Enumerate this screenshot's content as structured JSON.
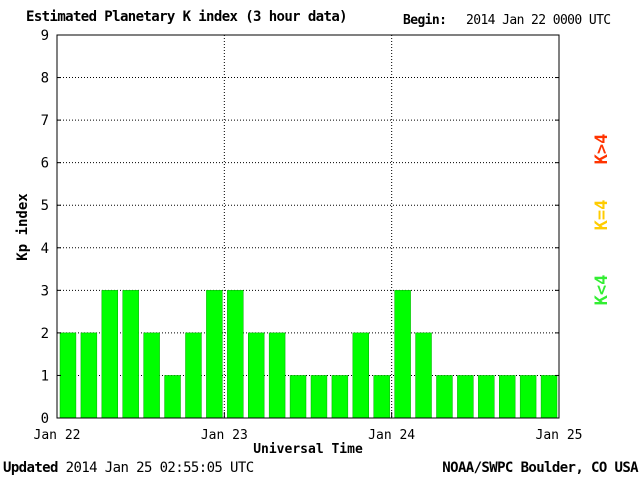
{
  "header": {
    "title": "Estimated Planetary K index (3 hour data)",
    "begin_label": "Begin:",
    "begin_value": "2014 Jan 22 0000 UTC"
  },
  "footer": {
    "updated_label": "Updated",
    "updated_value": "2014 Jan 25 02:55:05 UTC",
    "credit": "NOAA/SWPC Boulder, CO USA"
  },
  "legend": [
    {
      "label": "K>4",
      "color": "#ff3300"
    },
    {
      "label": "K=4",
      "color": "#ffcc00"
    },
    {
      "label": "K<4",
      "color": "#33ee33"
    }
  ],
  "colors": {
    "bar": "#00ff00",
    "bar_edge": "#00aa00"
  },
  "chart_data": {
    "type": "bar",
    "title": "Estimated Planetary K index (3 hour data)",
    "xlabel": "Universal Time",
    "ylabel": "Kp index",
    "ylim": [
      0,
      9
    ],
    "yticks": [
      0,
      1,
      2,
      3,
      4,
      5,
      6,
      7,
      8,
      9
    ],
    "xticks": [
      "Jan 22",
      "Jan 23",
      "Jan 24",
      "Jan 25"
    ],
    "grid": true,
    "values": [
      2,
      2,
      3,
      3,
      2,
      1,
      2,
      3,
      3,
      2,
      2,
      1,
      1,
      1,
      2,
      1,
      3,
      2,
      1,
      1,
      1,
      1,
      1,
      1
    ]
  }
}
